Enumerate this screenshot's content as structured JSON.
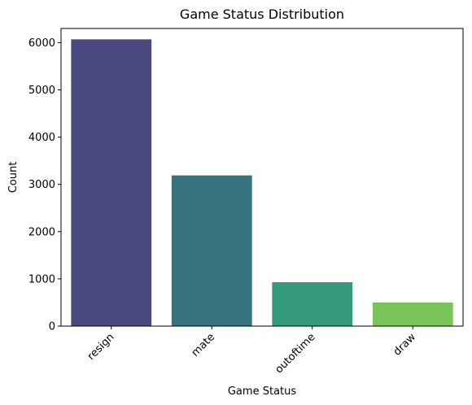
{
  "chart_data": {
    "type": "bar",
    "title": "Game Status Distribution",
    "xlabel": "Game Status",
    "ylabel": "Count",
    "categories": [
      "resign",
      "mate",
      "outoftime",
      "draw"
    ],
    "values": [
      6070,
      3190,
      930,
      500
    ],
    "colors": [
      "#4a4a7f",
      "#37747f",
      "#349a7b",
      "#79c459"
    ],
    "ylim": [
      0,
      6300
    ],
    "yticks": [
      0,
      1000,
      2000,
      3000,
      4000,
      5000,
      6000
    ],
    "grid": false,
    "legend": "none"
  }
}
